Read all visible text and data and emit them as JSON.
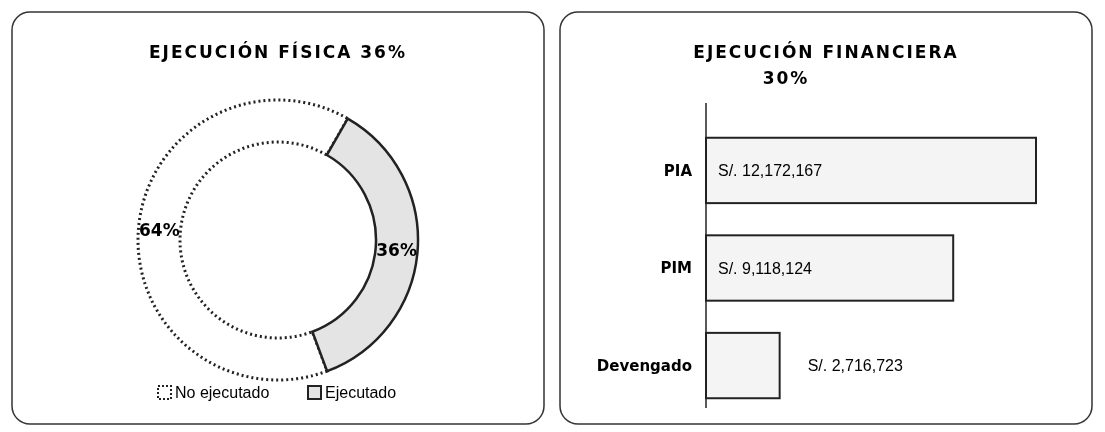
{
  "chart_data": [
    {
      "type": "donut",
      "title": "EJECUCIÓN FÍSICA 36%",
      "categories": [
        "No ejecutado",
        "Ejecutado"
      ],
      "values": [
        64,
        36
      ],
      "colors": [
        "#ffffff",
        "#e4e4e4"
      ],
      "value_labels": [
        "64%",
        "36%"
      ],
      "legend": "bottom"
    },
    {
      "type": "bar",
      "title": "EJECUCIÓN FINANCIERA 30%",
      "orientation": "horizontal",
      "categories": [
        "PIA",
        "PIM",
        "Devengado"
      ],
      "values": [
        12172167,
        9118124,
        2716723
      ],
      "color": "#f4f4f4",
      "value_labels": [
        "S/. 12,172,167",
        "S/. 9,118,124",
        "S/. 2,716,723"
      ]
    }
  ]
}
